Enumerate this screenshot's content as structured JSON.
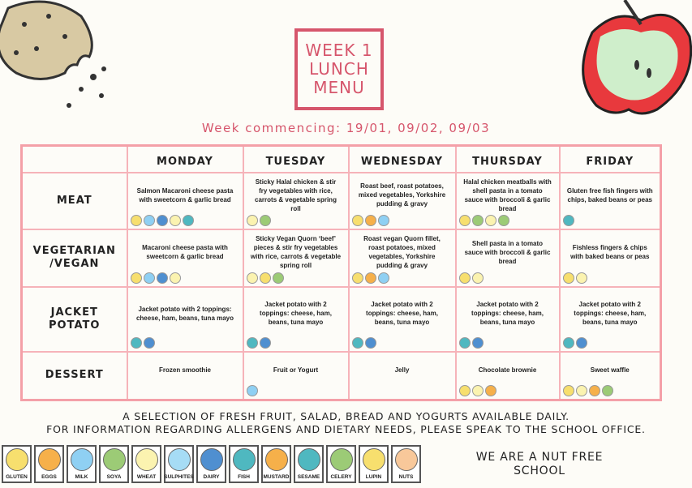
{
  "title": "WEEK 1\nLUNCH\nMENU",
  "week_commencing": "Week commencing: 19/01, 09/02, 09/03",
  "days": [
    "MONDAY",
    "TUESDAY",
    "WEDNESDAY",
    "THURSDAY",
    "FRIDAY"
  ],
  "allergen_colors": {
    "gluten": "#f7df6e",
    "eggs": "#f6b04a",
    "milk": "#8fd0f3",
    "soya": "#9ccb76",
    "wheat": "#fbf3b0",
    "sulphites": "#a6dcf5",
    "dairy": "#4f8fd0",
    "fish": "#4fb8c0",
    "mustard": "#f6b04a",
    "sesame": "#4fb8c0",
    "celery": "#9ccb76",
    "lupin": "#f7df6e",
    "nuts": "#f8c89a"
  },
  "rows": [
    {
      "label": "MEAT",
      "cells": [
        {
          "text": "Salmon Macaroni cheese pasta with sweetcorn & garlic bread",
          "allergens": [
            "gluten",
            "milk",
            "dairy",
            "wheat",
            "fish"
          ]
        },
        {
          "text": "Sticky Halal chicken & stir fry vegetables with rice, carrots & vegetable spring roll",
          "allergens": [
            "wheat",
            "soya"
          ]
        },
        {
          "text": "Roast beef, roast potatoes, mixed vegetables, Yorkshire pudding & gravy",
          "allergens": [
            "gluten",
            "eggs",
            "milk"
          ]
        },
        {
          "text": "Halal chicken meatballs with shell pasta in a tomato sauce with broccoli & garlic bread",
          "allergens": [
            "gluten",
            "soya",
            "wheat",
            "celery"
          ]
        },
        {
          "text": "Gluten free fish fingers with chips, baked beans or peas",
          "allergens": [
            "fish"
          ]
        }
      ]
    },
    {
      "label": "VEGETARIAN\n/VEGAN",
      "cells": [
        {
          "text": "Macaroni cheese pasta with sweetcorn & garlic bread",
          "allergens": [
            "gluten",
            "milk",
            "dairy",
            "wheat"
          ]
        },
        {
          "text": "Sticky Vegan Quorn ‘beef’ pieces & stir fry vegetables with rice, carrots & vegetable spring roll",
          "allergens": [
            "wheat",
            "gluten",
            "soya"
          ]
        },
        {
          "text": "Roast vegan Quorn fillet, roast potatoes, mixed vegetables, Yorkshire pudding & gravy",
          "allergens": [
            "gluten",
            "eggs",
            "milk"
          ]
        },
        {
          "text": "Shell pasta in a tomato sauce with broccoli & garlic bread",
          "allergens": [
            "gluten",
            "wheat"
          ]
        },
        {
          "text": "Fishless fingers & chips with baked beans or peas",
          "allergens": [
            "gluten",
            "wheat"
          ]
        }
      ]
    },
    {
      "label": "JACKET\nPOTATO",
      "cells": [
        {
          "text": "Jacket potato with 2 toppings: cheese, ham, beans, tuna mayo",
          "allergens": [
            "fish",
            "dairy"
          ]
        },
        {
          "text": "Jacket potato with 2 toppings: cheese, ham, beans, tuna mayo",
          "allergens": [
            "fish",
            "dairy"
          ]
        },
        {
          "text": "Jacket potato with 2 toppings: cheese, ham, beans, tuna mayo",
          "allergens": [
            "fish",
            "dairy"
          ]
        },
        {
          "text": "Jacket potato with 2 toppings: cheese, ham, beans, tuna mayo",
          "allergens": [
            "fish",
            "dairy"
          ]
        },
        {
          "text": "Jacket potato with 2 toppings: cheese, ham, beans, tuna mayo",
          "allergens": [
            "fish",
            "dairy"
          ]
        }
      ]
    },
    {
      "label": "DESSERT",
      "cells": [
        {
          "text": "Frozen smoothie",
          "allergens": []
        },
        {
          "text": "Fruit or Yogurt",
          "allergens": [
            "milk"
          ]
        },
        {
          "text": "Jelly",
          "allergens": []
        },
        {
          "text": "Chocolate brownie",
          "allergens": [
            "gluten",
            "wheat",
            "eggs"
          ]
        },
        {
          "text": "Sweet waffle",
          "allergens": [
            "gluten",
            "wheat",
            "eggs",
            "soya"
          ]
        }
      ]
    }
  ],
  "info_line1": "A SELECTION OF FRESH FRUIT, SALAD, BREAD AND YOGURTS AVAILABLE DAILY.",
  "info_line2": "FOR INFORMATION REGARDING ALLERGENS AND DIETARY NEEDS, PLEASE SPEAK TO THE SCHOOL OFFICE.",
  "legend": [
    {
      "key": "gluten",
      "label": "GLUTEN"
    },
    {
      "key": "eggs",
      "label": "EGGS"
    },
    {
      "key": "milk",
      "label": "MILK"
    },
    {
      "key": "soya",
      "label": "SOYA"
    },
    {
      "key": "wheat",
      "label": "WHEAT"
    },
    {
      "key": "sulphites",
      "label": "SULPHITES"
    },
    {
      "key": "dairy",
      "label": "DAIRY"
    },
    {
      "key": "fish",
      "label": "FISH"
    },
    {
      "key": "mustard",
      "label": "MUSTARD"
    },
    {
      "key": "sesame",
      "label": "SESAME"
    },
    {
      "key": "celery",
      "label": "CELERY"
    },
    {
      "key": "lupin",
      "label": "LUPIN"
    },
    {
      "key": "nuts",
      "label": "NUTS"
    }
  ],
  "nut_free": "WE ARE A NUT FREE\nSCHOOL"
}
